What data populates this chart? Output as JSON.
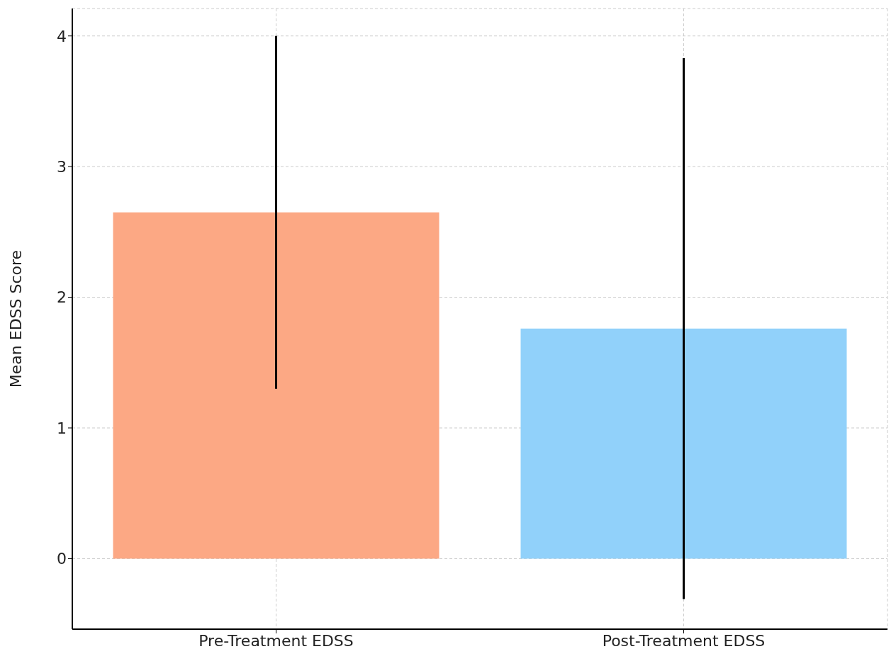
{
  "chart_data": {
    "type": "bar",
    "categories": [
      "Pre-Treatment EDSS",
      "Post-Treatment EDSS"
    ],
    "values": [
      2.65,
      1.76
    ],
    "errors": [
      1.35,
      2.07
    ],
    "colors": [
      "#fca884",
      "#91d1fa"
    ],
    "ylabel": "Mean EDSS Score",
    "ylim": [
      -0.54,
      4.21
    ],
    "yticks": [
      0,
      1,
      2,
      3,
      4
    ],
    "grid": true
  }
}
